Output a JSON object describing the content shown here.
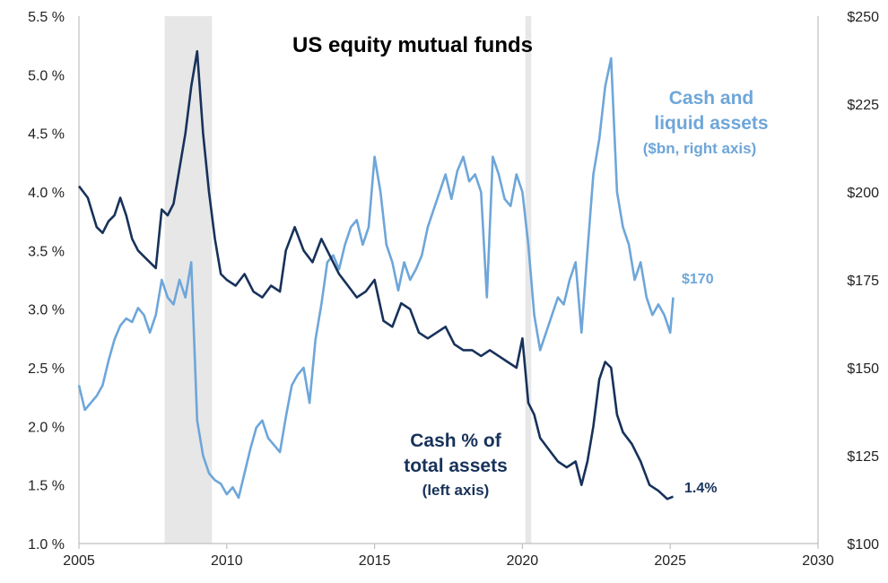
{
  "chart_data": {
    "type": "line",
    "title": "US equity mutual funds",
    "xlim": [
      2005,
      2030
    ],
    "x_ticks": [
      "2005",
      "2010",
      "2015",
      "2020",
      "2025",
      "2030"
    ],
    "y_left": {
      "lim": [
        1.0,
        5.5
      ],
      "ticks": [
        "1.0 %",
        "1.5 %",
        "2.0 %",
        "2.5 %",
        "3.0 %",
        "3.5 %",
        "4.0 %",
        "4.5 %",
        "5.0 %",
        "5.5 %"
      ]
    },
    "y_right": {
      "lim": [
        100,
        250
      ],
      "ticks": [
        "$100",
        "$125",
        "$150",
        "$175",
        "$200",
        "$225",
        "$250"
      ]
    },
    "shaded_periods": [
      [
        2007.9,
        2009.5
      ],
      [
        2020.1,
        2020.3
      ]
    ],
    "colors": {
      "cash_pct": "#17325a",
      "cash_assets": "#6ea6d9",
      "shade": "#e7e7e7",
      "axis": "#bfbfbf"
    },
    "series": [
      {
        "name": "Cash % of total assets (left axis)",
        "label_lines": [
          "Cash % of",
          "total assets",
          "(left axis)"
        ],
        "axis": "left",
        "end_label": "1.4%",
        "x": [
          2005.0,
          2005.3,
          2005.6,
          2005.8,
          2006.0,
          2006.2,
          2006.4,
          2006.6,
          2006.8,
          2007.0,
          2007.2,
          2007.4,
          2007.6,
          2007.8,
          2008.0,
          2008.2,
          2008.4,
          2008.6,
          2008.8,
          2009.0,
          2009.2,
          2009.4,
          2009.6,
          2009.8,
          2010.0,
          2010.3,
          2010.6,
          2010.9,
          2011.2,
          2011.5,
          2011.8,
          2012.0,
          2012.3,
          2012.6,
          2012.9,
          2013.2,
          2013.5,
          2013.8,
          2014.1,
          2014.4,
          2014.7,
          2015.0,
          2015.3,
          2015.6,
          2015.9,
          2016.2,
          2016.5,
          2016.8,
          2017.1,
          2017.4,
          2017.7,
          2018.0,
          2018.3,
          2018.6,
          2018.9,
          2019.2,
          2019.5,
          2019.8,
          2020.0,
          2020.2,
          2020.4,
          2020.6,
          2020.9,
          2021.2,
          2021.5,
          2021.8,
          2022.0,
          2022.2,
          2022.4,
          2022.6,
          2022.8,
          2023.0,
          2023.2,
          2023.4,
          2023.7,
          2024.0,
          2024.3,
          2024.6,
          2024.9,
          2025.1
        ],
        "values": [
          4.05,
          3.95,
          3.7,
          3.65,
          3.75,
          3.8,
          3.95,
          3.8,
          3.6,
          3.5,
          3.45,
          3.4,
          3.35,
          3.85,
          3.8,
          3.9,
          4.2,
          4.5,
          4.9,
          5.2,
          4.5,
          4.0,
          3.6,
          3.3,
          3.25,
          3.2,
          3.3,
          3.15,
          3.1,
          3.2,
          3.15,
          3.5,
          3.7,
          3.5,
          3.4,
          3.6,
          3.45,
          3.3,
          3.2,
          3.1,
          3.15,
          3.25,
          2.9,
          2.85,
          3.05,
          3.0,
          2.8,
          2.75,
          2.8,
          2.85,
          2.7,
          2.65,
          2.65,
          2.6,
          2.65,
          2.6,
          2.55,
          2.5,
          2.75,
          2.2,
          2.1,
          1.9,
          1.8,
          1.7,
          1.65,
          1.7,
          1.5,
          1.7,
          2.0,
          2.4,
          2.55,
          2.5,
          2.1,
          1.95,
          1.85,
          1.7,
          1.5,
          1.45,
          1.38,
          1.4
        ]
      },
      {
        "name": "Cash and liquid assets ($bn, right axis)",
        "label_lines": [
          "Cash and",
          "liquid assets",
          "($bn, right axis)"
        ],
        "axis": "right",
        "end_label": "$170",
        "x": [
          2005.0,
          2005.2,
          2005.4,
          2005.6,
          2005.8,
          2006.0,
          2006.2,
          2006.4,
          2006.6,
          2006.8,
          2007.0,
          2007.2,
          2007.4,
          2007.6,
          2007.8,
          2008.0,
          2008.2,
          2008.4,
          2008.6,
          2008.8,
          2009.0,
          2009.2,
          2009.4,
          2009.6,
          2009.8,
          2010.0,
          2010.2,
          2010.4,
          2010.6,
          2010.8,
          2011.0,
          2011.2,
          2011.4,
          2011.6,
          2011.8,
          2012.0,
          2012.2,
          2012.4,
          2012.6,
          2012.8,
          2013.0,
          2013.2,
          2013.4,
          2013.6,
          2013.8,
          2014.0,
          2014.2,
          2014.4,
          2014.6,
          2014.8,
          2015.0,
          2015.2,
          2015.4,
          2015.6,
          2015.8,
          2016.0,
          2016.2,
          2016.4,
          2016.6,
          2016.8,
          2017.0,
          2017.2,
          2017.4,
          2017.6,
          2017.8,
          2018.0,
          2018.2,
          2018.4,
          2018.6,
          2018.8,
          2019.0,
          2019.2,
          2019.4,
          2019.6,
          2019.8,
          2020.0,
          2020.2,
          2020.4,
          2020.6,
          2020.8,
          2021.0,
          2021.2,
          2021.4,
          2021.6,
          2021.8,
          2022.0,
          2022.2,
          2022.4,
          2022.6,
          2022.8,
          2023.0,
          2023.2,
          2023.4,
          2023.6,
          2023.8,
          2024.0,
          2024.2,
          2024.4,
          2024.6,
          2024.8,
          2025.0,
          2025.1
        ],
        "values": [
          145,
          138,
          140,
          142,
          145,
          152,
          158,
          162,
          164,
          163,
          167,
          165,
          160,
          165,
          175,
          170,
          168,
          175,
          170,
          180,
          135,
          125,
          120,
          118,
          117,
          114,
          116,
          113,
          120,
          127,
          133,
          135,
          130,
          128,
          126,
          136,
          145,
          148,
          150,
          140,
          158,
          168,
          180,
          182,
          178,
          185,
          190,
          192,
          185,
          190,
          210,
          200,
          185,
          180,
          172,
          180,
          175,
          178,
          182,
          190,
          195,
          200,
          205,
          198,
          206,
          210,
          203,
          205,
          200,
          170,
          210,
          205,
          198,
          196,
          205,
          200,
          185,
          165,
          155,
          160,
          165,
          170,
          168,
          175,
          180,
          160,
          183,
          205,
          215,
          230,
          238,
          200,
          190,
          185,
          175,
          180,
          170,
          165,
          168,
          165,
          160,
          170
        ]
      }
    ]
  }
}
